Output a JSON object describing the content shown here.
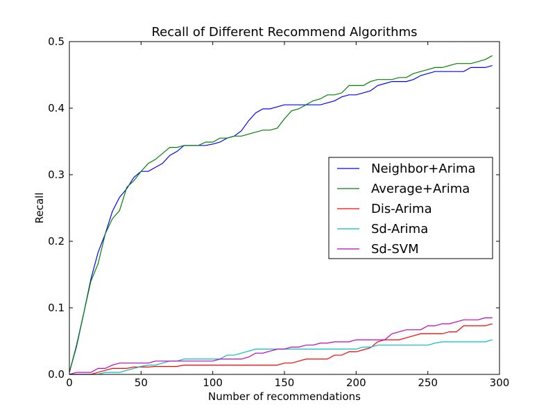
{
  "chart_data": {
    "type": "line",
    "title": "Recall of Different Recommend Algorithms",
    "xlabel": "Number of recommendations",
    "ylabel": "Recall",
    "xlim": [
      0,
      300
    ],
    "ylim": [
      0,
      0.5
    ],
    "xticks": [
      "0",
      "50",
      "100",
      "150",
      "200",
      "250",
      "300"
    ],
    "yticks": [
      "0.0",
      "0.1",
      "0.2",
      "0.3",
      "0.4",
      "0.5"
    ],
    "grid": false,
    "legend_position": "center-right",
    "x": [
      0,
      5,
      10,
      15,
      20,
      25,
      30,
      35,
      40,
      45,
      50,
      55,
      60,
      65,
      70,
      75,
      80,
      85,
      90,
      95,
      100,
      105,
      110,
      115,
      120,
      125,
      130,
      135,
      140,
      145,
      150,
      155,
      160,
      165,
      170,
      175,
      180,
      185,
      190,
      195,
      200,
      205,
      210,
      215,
      220,
      225,
      230,
      235,
      240,
      245,
      250,
      255,
      260,
      265,
      270,
      275,
      280,
      285,
      290,
      295
    ],
    "series": [
      {
        "name": "Neighbor+Arima",
        "color": "#0000ff",
        "values": [
          0.003,
          0.042,
          0.092,
          0.143,
          0.183,
          0.211,
          0.245,
          0.266,
          0.279,
          0.296,
          0.305,
          0.305,
          0.311,
          0.317,
          0.329,
          0.335,
          0.344,
          0.344,
          0.344,
          0.344,
          0.346,
          0.349,
          0.355,
          0.358,
          0.366,
          0.381,
          0.393,
          0.399,
          0.399,
          0.402,
          0.405,
          0.405,
          0.405,
          0.405,
          0.405,
          0.405,
          0.408,
          0.411,
          0.417,
          0.42,
          0.42,
          0.423,
          0.426,
          0.434,
          0.437,
          0.44,
          0.44,
          0.44,
          0.443,
          0.449,
          0.452,
          0.455,
          0.455,
          0.455,
          0.455,
          0.455,
          0.461,
          0.461,
          0.461,
          0.464
        ]
      },
      {
        "name": "Average+Arima",
        "color": "#008000",
        "values": [
          0.003,
          0.044,
          0.092,
          0.14,
          0.166,
          0.211,
          0.234,
          0.246,
          0.281,
          0.291,
          0.305,
          0.317,
          0.323,
          0.332,
          0.341,
          0.341,
          0.344,
          0.344,
          0.344,
          0.349,
          0.349,
          0.355,
          0.355,
          0.358,
          0.358,
          0.361,
          0.364,
          0.367,
          0.367,
          0.37,
          0.384,
          0.396,
          0.399,
          0.405,
          0.411,
          0.414,
          0.42,
          0.42,
          0.423,
          0.434,
          0.434,
          0.434,
          0.44,
          0.443,
          0.443,
          0.443,
          0.446,
          0.446,
          0.452,
          0.455,
          0.458,
          0.461,
          0.461,
          0.464,
          0.467,
          0.467,
          0.467,
          0.47,
          0.473,
          0.479
        ]
      },
      {
        "name": "Dis-Arima",
        "color": "#ff0000",
        "values": [
          0.0,
          0.0,
          0.0,
          0.0,
          0.003,
          0.006,
          0.009,
          0.009,
          0.009,
          0.011,
          0.011,
          0.011,
          0.012,
          0.012,
          0.012,
          0.012,
          0.014,
          0.014,
          0.014,
          0.014,
          0.014,
          0.014,
          0.014,
          0.014,
          0.014,
          0.014,
          0.014,
          0.014,
          0.014,
          0.014,
          0.017,
          0.017,
          0.02,
          0.023,
          0.023,
          0.023,
          0.023,
          0.029,
          0.029,
          0.034,
          0.034,
          0.037,
          0.04,
          0.049,
          0.052,
          0.052,
          0.052,
          0.055,
          0.058,
          0.061,
          0.061,
          0.061,
          0.061,
          0.064,
          0.064,
          0.073,
          0.073,
          0.073,
          0.073,
          0.076
        ]
      },
      {
        "name": "Sd-Arima",
        "color": "#00bfbf",
        "values": [
          0.0,
          0.0,
          0.0,
          0.0,
          0.0,
          0.003,
          0.003,
          0.003,
          0.006,
          0.009,
          0.012,
          0.014,
          0.014,
          0.017,
          0.02,
          0.02,
          0.023,
          0.023,
          0.023,
          0.023,
          0.023,
          0.023,
          0.029,
          0.029,
          0.032,
          0.035,
          0.038,
          0.038,
          0.038,
          0.038,
          0.038,
          0.038,
          0.038,
          0.038,
          0.038,
          0.038,
          0.038,
          0.038,
          0.038,
          0.038,
          0.038,
          0.041,
          0.041,
          0.044,
          0.044,
          0.044,
          0.044,
          0.044,
          0.044,
          0.044,
          0.044,
          0.047,
          0.049,
          0.049,
          0.049,
          0.049,
          0.049,
          0.049,
          0.049,
          0.052
        ]
      },
      {
        "name": "Sd-SVM",
        "color": "#bf00bf",
        "values": [
          0.0,
          0.003,
          0.003,
          0.003,
          0.009,
          0.009,
          0.014,
          0.017,
          0.017,
          0.017,
          0.017,
          0.017,
          0.02,
          0.02,
          0.02,
          0.02,
          0.02,
          0.02,
          0.02,
          0.02,
          0.02,
          0.023,
          0.023,
          0.023,
          0.023,
          0.026,
          0.032,
          0.032,
          0.035,
          0.038,
          0.038,
          0.041,
          0.041,
          0.044,
          0.044,
          0.047,
          0.047,
          0.049,
          0.049,
          0.049,
          0.052,
          0.052,
          0.052,
          0.052,
          0.052,
          0.061,
          0.064,
          0.067,
          0.067,
          0.067,
          0.073,
          0.073,
          0.076,
          0.076,
          0.079,
          0.082,
          0.082,
          0.082,
          0.085,
          0.085
        ]
      }
    ]
  }
}
